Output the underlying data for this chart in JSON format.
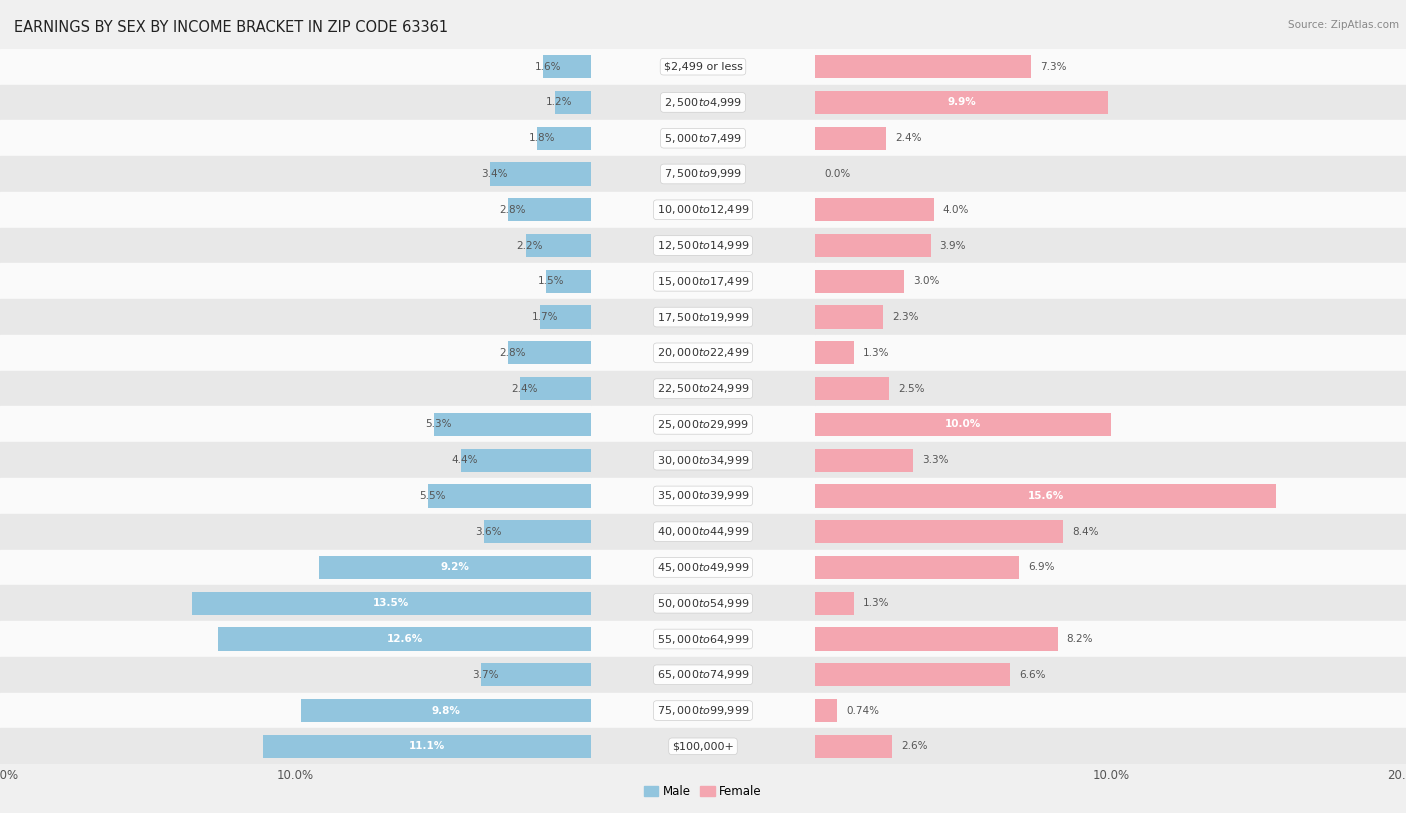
{
  "title": "EARNINGS BY SEX BY INCOME BRACKET IN ZIP CODE 63361",
  "source": "Source: ZipAtlas.com",
  "categories": [
    "$2,499 or less",
    "$2,500 to $4,999",
    "$5,000 to $7,499",
    "$7,500 to $9,999",
    "$10,000 to $12,499",
    "$12,500 to $14,999",
    "$15,000 to $17,499",
    "$17,500 to $19,999",
    "$20,000 to $22,499",
    "$22,500 to $24,999",
    "$25,000 to $29,999",
    "$30,000 to $34,999",
    "$35,000 to $39,999",
    "$40,000 to $44,999",
    "$45,000 to $49,999",
    "$50,000 to $54,999",
    "$55,000 to $64,999",
    "$65,000 to $74,999",
    "$75,000 to $99,999",
    "$100,000+"
  ],
  "male_values": [
    1.6,
    1.2,
    1.8,
    3.4,
    2.8,
    2.2,
    1.5,
    1.7,
    2.8,
    2.4,
    5.3,
    4.4,
    5.5,
    3.6,
    9.2,
    13.5,
    12.6,
    3.7,
    9.8,
    11.1
  ],
  "female_values": [
    7.3,
    9.9,
    2.4,
    0.0,
    4.0,
    3.9,
    3.0,
    2.3,
    1.3,
    2.5,
    10.0,
    3.3,
    15.6,
    8.4,
    6.9,
    1.3,
    8.2,
    6.6,
    0.74,
    2.6
  ],
  "male_color": "#92C5DE",
  "female_color": "#F4A6B0",
  "axis_max": 20.0,
  "background_color": "#f0f0f0",
  "row_bg_light": "#fafafa",
  "row_bg_dark": "#e8e8e8",
  "title_fontsize": 10.5,
  "source_fontsize": 7.5,
  "label_fontsize": 8.5,
  "category_fontsize": 8.0,
  "value_label_fontsize": 7.5
}
